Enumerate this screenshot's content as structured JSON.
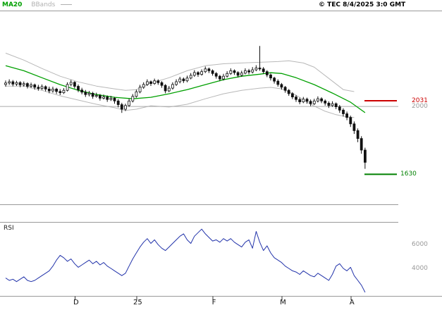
{
  "header": {
    "legend_ma20": "MA20",
    "legend_bbands": "BBands",
    "copyright": "© TEC 8/4/2025 3:0 GMT"
  },
  "rsi_panel": {
    "title": "RSI"
  },
  "chart_data": {
    "type": "candlestick",
    "title": "",
    "xlabel": "",
    "ylabel": "",
    "grid": false,
    "ylim": [
      1470,
      2550
    ],
    "x_count": 100,
    "xticks": [
      {
        "i": 19,
        "label": "D"
      },
      {
        "i": 36,
        "label": "25"
      },
      {
        "i": 57,
        "label": "F"
      },
      {
        "i": 76,
        "label": "M"
      },
      {
        "i": 95,
        "label": "A"
      }
    ],
    "levels": [
      {
        "label": "2031",
        "price": 2031,
        "color": "#cc0000",
        "style": "segment"
      },
      {
        "label": "2000",
        "price": 2000,
        "color": "#999999",
        "style": "full"
      },
      {
        "label": "1630",
        "price": 1630,
        "color": "#008000",
        "style": "segment"
      }
    ],
    "colors": {
      "ma20": "#00a000",
      "bbands": "#b8b8b8",
      "candle": "#111111",
      "rsi": "#2233aa"
    },
    "candles": [
      [
        2120,
        2142,
        2108,
        2128
      ],
      [
        2128,
        2148,
        2118,
        2135
      ],
      [
        2135,
        2144,
        2110,
        2122
      ],
      [
        2122,
        2140,
        2112,
        2130
      ],
      [
        2130,
        2138,
        2105,
        2118
      ],
      [
        2118,
        2136,
        2108,
        2125
      ],
      [
        2125,
        2132,
        2098,
        2110
      ],
      [
        2110,
        2130,
        2100,
        2118
      ],
      [
        2118,
        2125,
        2092,
        2105
      ],
      [
        2105,
        2118,
        2086,
        2098
      ],
      [
        2098,
        2120,
        2090,
        2108
      ],
      [
        2108,
        2115,
        2082,
        2095
      ],
      [
        2095,
        2108,
        2072,
        2085
      ],
      [
        2085,
        2108,
        2075,
        2095
      ],
      [
        2095,
        2102,
        2068,
        2082
      ],
      [
        2082,
        2095,
        2062,
        2075
      ],
      [
        2075,
        2100,
        2068,
        2088
      ],
      [
        2088,
        2132,
        2082,
        2120
      ],
      [
        2120,
        2145,
        2110,
        2132
      ],
      [
        2132,
        2138,
        2098,
        2110
      ],
      [
        2110,
        2120,
        2078,
        2090
      ],
      [
        2090,
        2102,
        2066,
        2078
      ],
      [
        2078,
        2090,
        2052,
        2065
      ],
      [
        2065,
        2085,
        2055,
        2072
      ],
      [
        2072,
        2080,
        2042,
        2055
      ],
      [
        2055,
        2075,
        2048,
        2060
      ],
      [
        2060,
        2068,
        2032,
        2045
      ],
      [
        2045,
        2065,
        2038,
        2052
      ],
      [
        2052,
        2060,
        2025,
        2038
      ],
      [
        2038,
        2058,
        2030,
        2045
      ],
      [
        2045,
        2052,
        2015,
        2030
      ],
      [
        2030,
        2040,
        1995,
        2010
      ],
      [
        2010,
        2020,
        1965,
        1985
      ],
      [
        1985,
        2015,
        1975,
        2005
      ],
      [
        2005,
        2042,
        1998,
        2030
      ],
      [
        2030,
        2068,
        2022,
        2055
      ],
      [
        2055,
        2092,
        2048,
        2080
      ],
      [
        2080,
        2118,
        2072,
        2105
      ],
      [
        2105,
        2132,
        2096,
        2120
      ],
      [
        2120,
        2148,
        2112,
        2135
      ],
      [
        2135,
        2142,
        2112,
        2125
      ],
      [
        2125,
        2152,
        2118,
        2140
      ],
      [
        2140,
        2148,
        2118,
        2130
      ],
      [
        2130,
        2138,
        2102,
        2115
      ],
      [
        2115,
        2122,
        2072,
        2085
      ],
      [
        2085,
        2112,
        2078,
        2100
      ],
      [
        2100,
        2132,
        2092,
        2120
      ],
      [
        2120,
        2148,
        2112,
        2135
      ],
      [
        2135,
        2162,
        2126,
        2150
      ],
      [
        2150,
        2158,
        2128,
        2140
      ],
      [
        2140,
        2168,
        2132,
        2155
      ],
      [
        2155,
        2182,
        2148,
        2170
      ],
      [
        2170,
        2198,
        2162,
        2185
      ],
      [
        2185,
        2192,
        2162,
        2175
      ],
      [
        2175,
        2202,
        2168,
        2190
      ],
      [
        2190,
        2218,
        2182,
        2205
      ],
      [
        2205,
        2212,
        2182,
        2195
      ],
      [
        2195,
        2202,
        2168,
        2180
      ],
      [
        2180,
        2188,
        2152,
        2165
      ],
      [
        2165,
        2172,
        2138,
        2150
      ],
      [
        2150,
        2178,
        2142,
        2165
      ],
      [
        2165,
        2192,
        2158,
        2180
      ],
      [
        2180,
        2208,
        2172,
        2195
      ],
      [
        2195,
        2202,
        2172,
        2185
      ],
      [
        2185,
        2192,
        2158,
        2170
      ],
      [
        2170,
        2195,
        2162,
        2182
      ],
      [
        2182,
        2208,
        2175,
        2195
      ],
      [
        2195,
        2205,
        2175,
        2188
      ],
      [
        2188,
        2215,
        2180,
        2200
      ],
      [
        2200,
        2225,
        2192,
        2210
      ],
      [
        2210,
        2330,
        2195,
        2205
      ],
      [
        2205,
        2215,
        2178,
        2190
      ],
      [
        2190,
        2198,
        2160,
        2172
      ],
      [
        2172,
        2180,
        2142,
        2155
      ],
      [
        2155,
        2162,
        2125,
        2138
      ],
      [
        2138,
        2148,
        2108,
        2120
      ],
      [
        2120,
        2128,
        2092,
        2105
      ],
      [
        2105,
        2112,
        2075,
        2088
      ],
      [
        2088,
        2095,
        2058,
        2070
      ],
      [
        2070,
        2078,
        2040,
        2052
      ],
      [
        2052,
        2062,
        2025,
        2038
      ],
      [
        2038,
        2048,
        2012,
        2025
      ],
      [
        2025,
        2052,
        2018,
        2040
      ],
      [
        2040,
        2048,
        2015,
        2028
      ],
      [
        2028,
        2038,
        2002,
        2015
      ],
      [
        2015,
        2042,
        2008,
        2030
      ],
      [
        2030,
        2055,
        2022,
        2042
      ],
      [
        2042,
        2050,
        2018,
        2030
      ],
      [
        2030,
        2038,
        2005,
        2018
      ],
      [
        2018,
        2028,
        1992,
        2005
      ],
      [
        2005,
        2028,
        1998,
        2015
      ],
      [
        2015,
        2022,
        1985,
        1998
      ],
      [
        1998,
        2008,
        1965,
        1980
      ],
      [
        1980,
        1990,
        1945,
        1960
      ],
      [
        1960,
        1972,
        1925,
        1940
      ],
      [
        1940,
        1950,
        1888,
        1905
      ],
      [
        1905,
        1918,
        1850,
        1868
      ],
      [
        1868,
        1880,
        1805,
        1825
      ],
      [
        1825,
        1838,
        1742,
        1762
      ],
      [
        1762,
        1775,
        1660,
        1695
      ]
    ],
    "ma20": [
      [
        0,
        2222
      ],
      [
        5,
        2195
      ],
      [
        10,
        2157
      ],
      [
        15,
        2119
      ],
      [
        20,
        2088
      ],
      [
        25,
        2065
      ],
      [
        30,
        2050
      ],
      [
        35,
        2042
      ],
      [
        40,
        2050
      ],
      [
        45,
        2069
      ],
      [
        50,
        2092
      ],
      [
        55,
        2119
      ],
      [
        60,
        2146
      ],
      [
        65,
        2165
      ],
      [
        70,
        2176
      ],
      [
        73,
        2184
      ],
      [
        76,
        2180
      ],
      [
        80,
        2157
      ],
      [
        85,
        2119
      ],
      [
        90,
        2073
      ],
      [
        95,
        2023
      ],
      [
        99,
        1966
      ]
    ],
    "bb_upper": [
      [
        0,
        2291
      ],
      [
        5,
        2253
      ],
      [
        10,
        2207
      ],
      [
        15,
        2165
      ],
      [
        20,
        2134
      ],
      [
        25,
        2111
      ],
      [
        30,
        2096
      ],
      [
        33,
        2088
      ],
      [
        36,
        2092
      ],
      [
        40,
        2127
      ],
      [
        45,
        2157
      ],
      [
        50,
        2195
      ],
      [
        55,
        2222
      ],
      [
        60,
        2233
      ],
      [
        65,
        2237
      ],
      [
        70,
        2241
      ],
      [
        75,
        2245
      ],
      [
        78,
        2249
      ],
      [
        82,
        2237
      ],
      [
        85,
        2214
      ],
      [
        90,
        2138
      ],
      [
        93,
        2092
      ],
      [
        96,
        2081
      ]
    ],
    "bb_lower": [
      [
        0,
        2111
      ],
      [
        5,
        2111
      ],
      [
        10,
        2088
      ],
      [
        15,
        2058
      ],
      [
        20,
        2035
      ],
      [
        25,
        2012
      ],
      [
        30,
        1993
      ],
      [
        33,
        1978
      ],
      [
        36,
        1985
      ],
      [
        40,
        2004
      ],
      [
        45,
        1997
      ],
      [
        50,
        2012
      ],
      [
        55,
        2042
      ],
      [
        60,
        2069
      ],
      [
        65,
        2088
      ],
      [
        70,
        2100
      ],
      [
        73,
        2104
      ],
      [
        76,
        2096
      ],
      [
        80,
        2062
      ],
      [
        84,
        2012
      ],
      [
        88,
        1974
      ],
      [
        91,
        1955
      ],
      [
        94,
        1943
      ],
      [
        96,
        1940
      ]
    ],
    "rsi": {
      "ylim": [
        17,
        79
      ],
      "ticks": [
        {
          "value": 60,
          "label": "6000"
        },
        {
          "value": 40,
          "label": "4000"
        }
      ],
      "values": [
        32,
        30,
        31,
        29,
        31,
        33,
        30,
        29,
        30,
        32,
        34,
        36,
        38,
        42,
        47,
        51,
        49,
        46,
        48,
        44,
        41,
        43,
        45,
        47,
        44,
        46,
        43,
        45,
        42,
        40,
        38,
        36,
        34,
        36,
        42,
        48,
        53,
        58,
        62,
        65,
        61,
        64,
        60,
        57,
        55,
        58,
        61,
        64,
        67,
        69,
        64,
        61,
        67,
        70,
        73,
        69,
        66,
        63,
        64,
        62,
        65,
        63,
        65,
        62,
        60,
        58,
        62,
        64,
        57,
        71,
        62,
        55,
        59,
        53,
        49,
        47,
        45,
        42,
        40,
        38,
        37,
        35,
        38,
        36,
        34,
        33,
        36,
        34,
        32,
        30,
        35,
        42,
        44,
        40,
        38,
        41,
        34,
        30,
        26,
        20
      ]
    }
  }
}
